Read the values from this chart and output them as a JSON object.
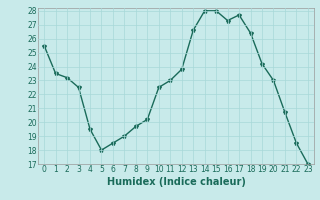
{
  "x": [
    0,
    1,
    2,
    3,
    4,
    5,
    6,
    7,
    8,
    9,
    10,
    11,
    12,
    13,
    14,
    15,
    16,
    17,
    18,
    19,
    20,
    21,
    22,
    23
  ],
  "y": [
    25.5,
    23.5,
    23.2,
    22.5,
    19.5,
    18.0,
    18.5,
    19.0,
    19.7,
    20.2,
    22.5,
    23.0,
    23.8,
    26.6,
    28.0,
    28.0,
    27.3,
    27.7,
    26.4,
    24.2,
    23.0,
    20.7,
    18.5,
    17.0
  ],
  "line_color": "#1a6b5a",
  "marker": "*",
  "marker_size": 3,
  "bg_color": "#c8eaea",
  "grid_color": "#a8d8d8",
  "xlabel": "Humidex (Indice chaleur)",
  "ylim": [
    17,
    28
  ],
  "xlim": [
    -0.5,
    23.5
  ],
  "yticks": [
    17,
    18,
    19,
    20,
    21,
    22,
    23,
    24,
    25,
    26,
    27,
    28
  ],
  "xticks": [
    0,
    1,
    2,
    3,
    4,
    5,
    6,
    7,
    8,
    9,
    10,
    11,
    12,
    13,
    14,
    15,
    16,
    17,
    18,
    19,
    20,
    21,
    22,
    23
  ],
  "xlabel_fontsize": 7,
  "tick_fontsize": 5.5,
  "line_width": 1.0,
  "title": ""
}
